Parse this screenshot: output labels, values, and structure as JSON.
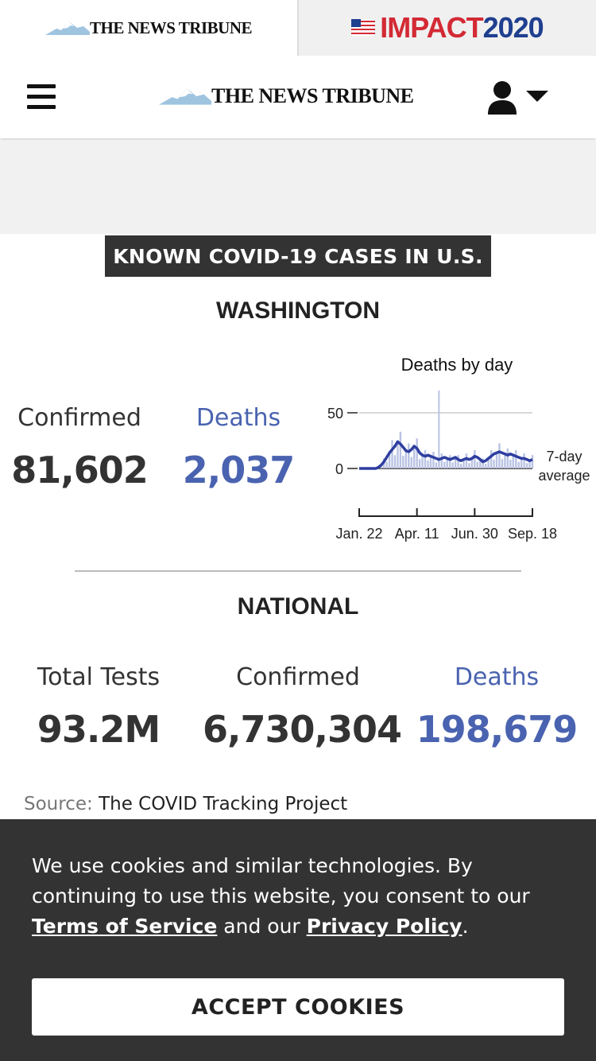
{
  "top_tabs": {
    "left_brand": "THE NEWS TRIBUNE",
    "right_brand_part1": "IMPACT",
    "right_brand_part2": "2020"
  },
  "header": {
    "brand": "THE NEWS TRIBUNE"
  },
  "covid": {
    "banner": "KNOWN COVID-19 CASES IN U.S.",
    "state_title": "WASHINGTON",
    "state_stats": {
      "confirmed_label": "Confirmed",
      "confirmed_value": "81,602",
      "deaths_label": "Deaths",
      "deaths_value": "2,037"
    },
    "national_title": "NATIONAL",
    "national_stats": {
      "tests_label": "Total Tests",
      "tests_value": "93.2M",
      "confirmed_label": "Confirmed",
      "confirmed_value": "6,730,304",
      "deaths_label": "Deaths",
      "deaths_value": "198,679"
    },
    "source_label": "Source:",
    "source_value": "The COVID Tracking Project"
  },
  "chart_data": {
    "type": "area",
    "title": "Deaths by day",
    "x_tick_labels": [
      "Jan. 22",
      "Apr. 11",
      "Jun. 30",
      "Sep. 18"
    ],
    "y_ticks": [
      0,
      50
    ],
    "ylim": [
      0,
      70
    ],
    "series_label": "7-day average",
    "series": [
      {
        "name": "7-day average",
        "values": [
          0,
          0,
          0,
          0,
          0,
          0,
          0,
          1,
          3,
          6,
          10,
          14,
          17,
          20,
          24,
          22,
          19,
          16,
          15,
          17,
          20,
          18,
          14,
          12,
          11,
          12,
          11,
          10,
          9,
          8,
          9,
          10,
          9,
          8,
          9,
          10,
          8,
          7,
          8,
          9,
          8,
          9,
          11,
          10,
          8,
          6,
          7,
          9,
          11,
          13,
          14,
          15,
          14,
          13,
          12,
          13,
          12,
          11,
          10,
          9,
          9,
          8,
          7,
          8
        ]
      }
    ],
    "grid": true,
    "colors": {
      "line": "#2e3ea0",
      "bars": "#b9c3e3"
    }
  },
  "cookie": {
    "text_before": "We use cookies and similar technologies. By continuing to use this website, you consent to our ",
    "terms_link": "Terms of Service",
    "text_middle": " and our ",
    "privacy_link": "Privacy Policy",
    "text_after": ".",
    "accept_label": "ACCEPT COOKIES"
  },
  "colors": {
    "accent_blue": "#4a63b0",
    "impact_red": "#d32a35",
    "impact_navy": "#1f3f8f",
    "banner_bg": "#333333",
    "cookie_bg": "#333333"
  }
}
